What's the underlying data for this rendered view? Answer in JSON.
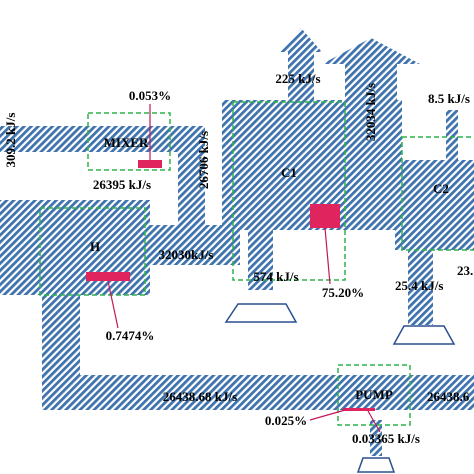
{
  "nodes": [
    {
      "label": "MIXER"
    },
    {
      "label": "C1"
    },
    {
      "label": "C2"
    },
    {
      "label": "H"
    },
    {
      "label": "PUMP"
    }
  ],
  "flows": [
    {
      "label": "309.2 kJ/s"
    },
    {
      "label": "26395 kJ/s"
    },
    {
      "label": "26706 kJ/s"
    },
    {
      "label": "225 kJ/s"
    },
    {
      "label": "32034 kJ/s"
    },
    {
      "label": "8.5 kJ/s"
    },
    {
      "label": "32030kJ/s"
    },
    {
      "label": "574 kJ/s"
    },
    {
      "label": "25.4 kJ/s"
    },
    {
      "label": "23."
    },
    {
      "label": "26438.68 kJ/s"
    },
    {
      "label": "26438.6"
    },
    {
      "label": "0.03365 kJ/s"
    }
  ],
  "losses": [
    {
      "label": "0.053%"
    },
    {
      "label": "75.20%"
    },
    {
      "label": "0.7474%"
    },
    {
      "label": "0.025%"
    }
  ]
}
